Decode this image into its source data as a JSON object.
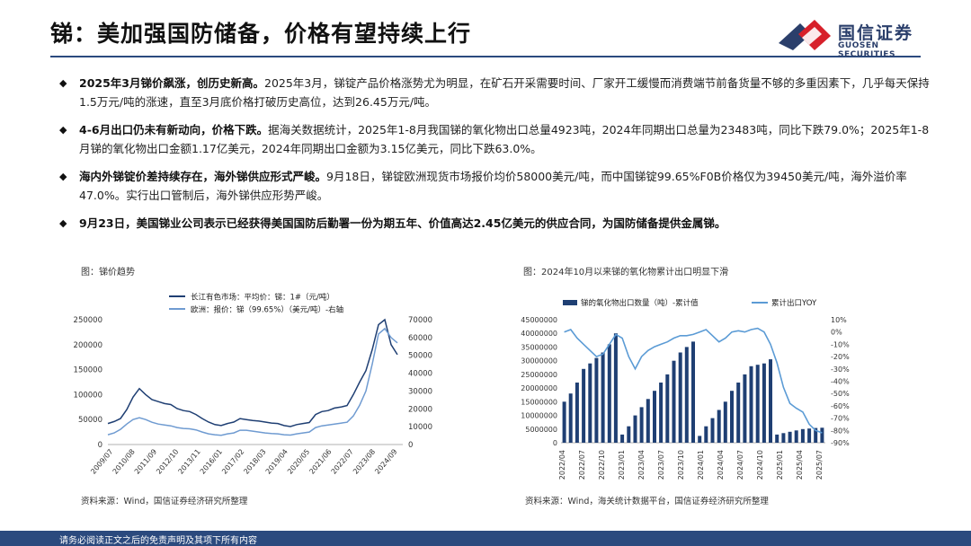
{
  "header": {
    "title": "锑：美加强国防储备，价格有望持续上行",
    "logo_cn": "国信证券",
    "logo_en": "GUOSEN SECURITIES",
    "logo_colors": {
      "navy": "#2b3f6b",
      "red": "#d7202a"
    }
  },
  "bullets": [
    {
      "bold": "2025年3月锑价飙涨，创历史新高。",
      "text": "2025年3月，锑锭产品价格涨势尤为明显，在矿石开采需要时间、厂家开工缓慢而消费端节前备货量不够的多重因素下，几乎每天保持1.5万元/吨的涨速，直至3月底价格打破历史高位，达到26.45万元/吨。"
    },
    {
      "bold": "4-6月出口仍未有新动向，价格下跌。",
      "text": "据海关数据统计，2025年1-8月我国锑的氧化物出口总量4923吨，2024年同期出口总量为23483吨，同比下跌79.0%；2025年1-8月锑的氧化物出口金额1.17亿美元，2024年同期出口金额为3.15亿美元，同比下跌63.0%。"
    },
    {
      "bold": "海内外锑锭价差持续存在，海外锑供应形式严峻。",
      "text": "9月18日，锑锭欧洲现货市场报价均价58000美元/吨，而中国锑锭99.65%F0B价格仅为39450美元/吨，海外溢价率47.0%。实行出口管制后，海外锑供应形势严峻。"
    },
    {
      "bold": "9月23日，美国锑业公司表示已经获得美国国防后勤署一份为期五年、价值高达2.45亿美元的供应合同，为国防储备提供金属锑。",
      "text": ""
    }
  ],
  "chart_left_title": "图：锑价趋势",
  "chart_left_source": "资料来源：Wind，国信证券经济研究所整理",
  "chart_right_title": "图：2024年10月以来锑的氧化物累计出口明显下滑",
  "chart_right_source": "资料来源：Wind，海关统计数据平台，国信证券经济研究所整理",
  "footer": "请务必阅读正文之后的免责声明及其项下所有内容",
  "chart_data": [
    {
      "type": "line",
      "title": "锑价趋势",
      "x_ticks": [
        "2009/07",
        "2010/08",
        "2011/09",
        "2012/10",
        "2013/11",
        "2016/01",
        "2017/02",
        "2018/03",
        "2019/04",
        "2020/05",
        "2021/06",
        "2022/07",
        "2023/08",
        "2024/09"
      ],
      "ylim_left": [
        0,
        250000
      ],
      "y_ticks_left": [
        0,
        50000,
        100000,
        150000,
        200000,
        250000
      ],
      "ylim_right": [
        0,
        70000
      ],
      "y_ticks_right": [
        0,
        10000,
        20000,
        30000,
        40000,
        50000,
        60000,
        70000
      ],
      "series": [
        {
          "name": "长江有色市场：平均价：锑：1#（元/吨）",
          "axis": "left",
          "color": "#1f3f73",
          "values": [
            42000,
            46000,
            52000,
            70000,
            95000,
            112000,
            100000,
            90000,
            86000,
            82000,
            80000,
            72000,
            68000,
            66000,
            60000,
            52000,
            45000,
            40000,
            38000,
            42000,
            45000,
            52000,
            50000,
            48000,
            47000,
            45000,
            43000,
            42000,
            38000,
            36000,
            40000,
            42000,
            44000,
            60000,
            66000,
            68000,
            73000,
            75000,
            78000,
            100000,
            125000,
            148000,
            190000,
            240000,
            250000,
            200000,
            180000
          ]
        },
        {
          "name": "欧洲：报价：锑（99.65%）（美元/吨）-右轴",
          "axis": "right",
          "color": "#6f9bd1",
          "values": [
            5500,
            6500,
            8500,
            11500,
            14000,
            15000,
            14000,
            12500,
            11500,
            11000,
            10500,
            9500,
            9000,
            8800,
            8200,
            7000,
            6000,
            5500,
            5200,
            6000,
            6500,
            8000,
            8000,
            7500,
            7000,
            6500,
            6200,
            6000,
            5500,
            5300,
            6000,
            6500,
            7000,
            9500,
            10500,
            11000,
            11500,
            12000,
            12500,
            16000,
            22000,
            30000,
            45000,
            62000,
            65000,
            60000,
            57000
          ]
        }
      ]
    },
    {
      "type": "bar+line",
      "title": "2024年10月以来锑的氧化物累计出口明显下滑",
      "x_ticks": [
        "2022/04",
        "2022/07",
        "2022/10",
        "2023/01",
        "2023/04",
        "2023/07",
        "2023/10",
        "2024/01",
        "2024/04",
        "2024/07",
        "2024/10",
        "2025/01",
        "2025/04",
        "2025/07"
      ],
      "ylim_left": [
        0,
        45000000
      ],
      "y_ticks_left": [
        0,
        5000000,
        10000000,
        15000000,
        20000000,
        25000000,
        30000000,
        35000000,
        40000000,
        45000000
      ],
      "ylim_right": [
        -90,
        10
      ],
      "y_ticks_right": [
        "10%",
        "0%",
        "-10%",
        "-20%",
        "-30%",
        "-40%",
        "-50%",
        "-60%",
        "-70%",
        "-80%",
        "-90%"
      ],
      "series": [
        {
          "name": "锑的氧化物出口数量（吨）-累计值",
          "axis": "left",
          "color": "#1f3f73",
          "values": [
            15000000,
            18000000,
            22000000,
            27000000,
            29000000,
            31000000,
            33000000,
            36000000,
            40000000,
            3000000,
            6000000,
            10000000,
            13000000,
            16000000,
            19000000,
            22000000,
            25000000,
            30000000,
            33000000,
            35000000,
            37000000,
            2500000,
            6000000,
            9000000,
            12000000,
            15000000,
            19000000,
            22000000,
            25000000,
            28000000,
            28500000,
            29000000,
            30500000,
            3000000,
            3500000,
            4000000,
            4500000,
            5000000,
            5200000,
            5400000,
            5500000
          ]
        },
        {
          "name": "累计出口YOY",
          "axis": "right",
          "color": "#5b9bd5",
          "values": [
            0,
            2,
            -5,
            -10,
            -15,
            -20,
            -18,
            -10,
            -2,
            -5,
            -20,
            -30,
            -20,
            -15,
            -12,
            -10,
            -8,
            -5,
            -3,
            -3,
            -2,
            0,
            2,
            -3,
            -8,
            -5,
            0,
            1,
            0,
            2,
            3,
            0,
            -10,
            -25,
            -45,
            -58,
            -62,
            -65,
            -75,
            -80,
            -82
          ]
        }
      ]
    }
  ]
}
